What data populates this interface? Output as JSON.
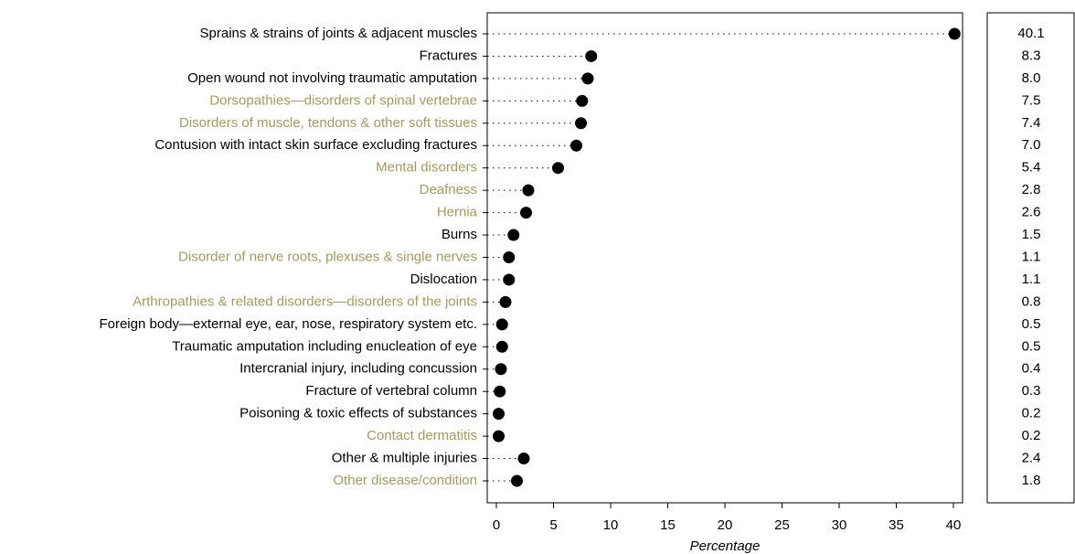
{
  "chart_data": {
    "type": "dot",
    "x_label": "Percentage",
    "categories": [
      "Sprains & strains of joints & adjacent muscles",
      "Fractures",
      "Open wound not involving traumatic amputation",
      "Dorsopathies—disorders of spinal vertebrae",
      "Disorders of muscle, tendons & other soft tissues",
      "Contusion with intact skin surface excluding fractures",
      "Mental disorders",
      "Deafness",
      "Hernia",
      "Burns",
      "Disorder of nerve roots, plexuses & single nerves",
      "Dislocation",
      "Arthropathies & related disorders—disorders of the joints",
      "Foreign body—external eye, ear, nose, respiratory system etc.",
      "Traumatic amputation including enucleation of eye",
      "Intercranial injury, including concussion",
      "Fracture of vertebral column",
      "Poisoning & toxic effects of substances",
      "Contact dermatitis",
      "Other & multiple injuries",
      "Other disease/condition"
    ],
    "label_colors": [
      "#000000",
      "#000000",
      "#000000",
      "#a39b5b",
      "#a39b5b",
      "#000000",
      "#a39b5b",
      "#a39b5b",
      "#a39b5b",
      "#000000",
      "#a39b5b",
      "#000000",
      "#a39b5b",
      "#000000",
      "#000000",
      "#000000",
      "#000000",
      "#000000",
      "#a39b5b",
      "#000000",
      "#a39b5b"
    ],
    "values": [
      40.1,
      8.3,
      8.0,
      7.5,
      7.4,
      7.0,
      5.4,
      2.8,
      2.6,
      1.5,
      1.1,
      1.1,
      0.8,
      0.5,
      0.5,
      0.4,
      0.3,
      0.2,
      0.2,
      2.4,
      1.8
    ],
    "value_labels": [
      "40.1",
      "8.3",
      "8.0",
      "7.5",
      "7.4",
      "7.0",
      "5.4",
      "2.8",
      "2.6",
      "1.5",
      "1.1",
      "1.1",
      "0.8",
      "0.5",
      "0.5",
      "0.4",
      "0.3",
      "0.2",
      "0.2",
      "2.4",
      "1.8"
    ],
    "color": "#000000",
    "xlim": [
      -0.8,
      40.8
    ],
    "xticks": [
      0,
      5,
      10,
      15,
      20,
      25,
      30,
      35,
      40
    ]
  }
}
